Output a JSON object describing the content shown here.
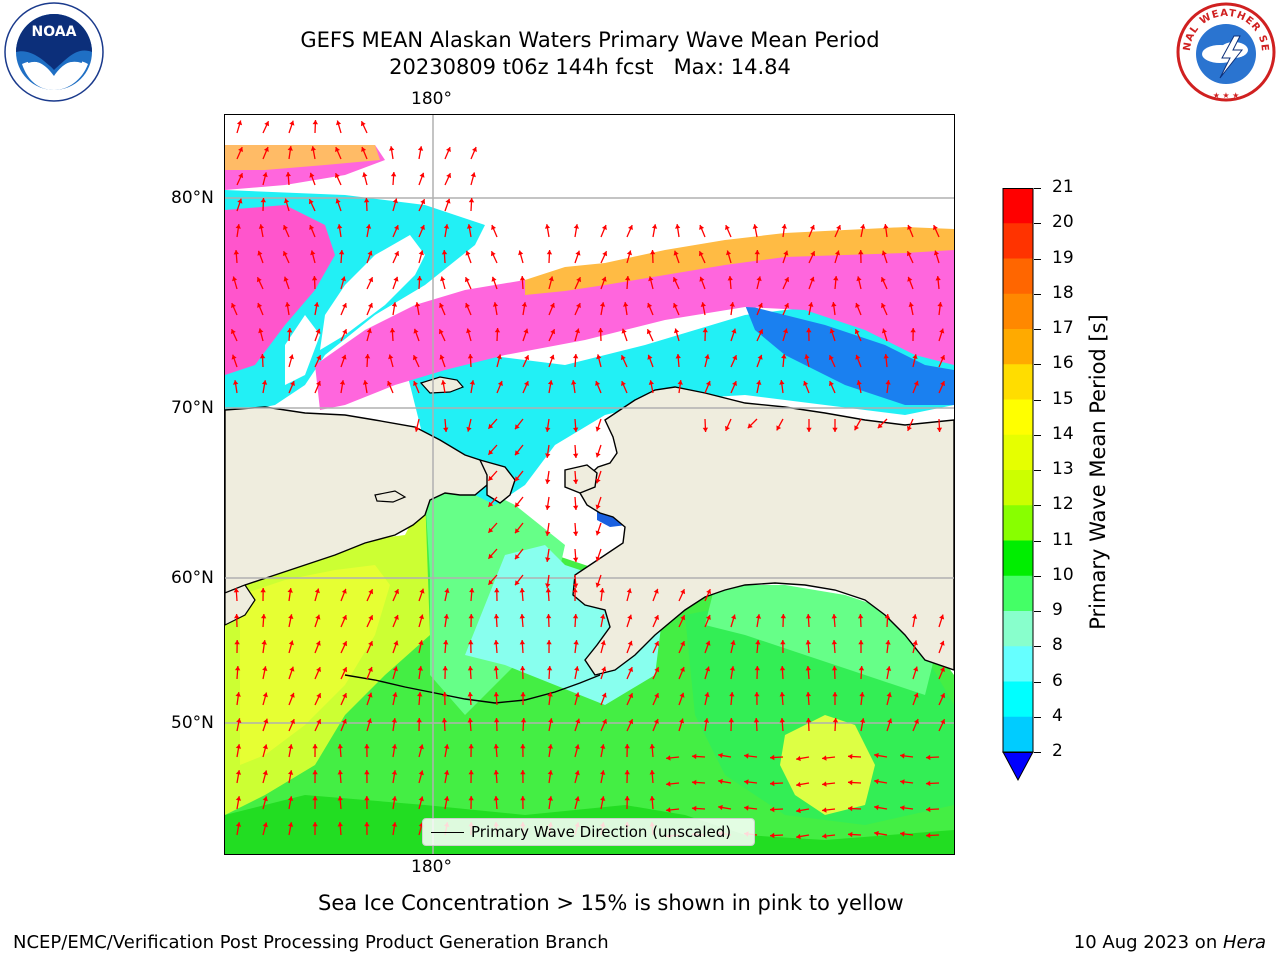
{
  "title": {
    "line1": "GEFS MEAN Alaskan Waters Primary Wave Mean Period",
    "line2": "20230809 t06z 144h fcst   Max: 14.84"
  },
  "logos": {
    "left": {
      "text": "NOAA",
      "ring_text": "NATIONAL OCEANIC AND ATMOSPHERIC ADMINISTRATION · U.S. DEPARTMENT OF COMMERCE",
      "icon": "noaa-logo"
    },
    "right": {
      "ring_text": "NATIONAL WEATHER SERVICE",
      "icon": "nws-logo"
    }
  },
  "map": {
    "top_longitude_label": "180°",
    "bottom_longitude_label": "180°",
    "latitude_labels": [
      "80°N",
      "70°N",
      "60°N",
      "50°N"
    ],
    "legend_entry": "Primary Wave Direction (unscaled)",
    "vector_color": "#ff0000",
    "land_color": "#efedde",
    "gridline_color": "#b0b0b0"
  },
  "colorbar": {
    "label": "Primary Wave Mean Period [s]",
    "ticks": [
      "21",
      "20",
      "19",
      "18",
      "17",
      "16",
      "15",
      "14",
      "13",
      "12",
      "11",
      "10",
      "9",
      "8",
      "6",
      "4",
      "2"
    ],
    "colors": [
      "#ff0000",
      "#ff3300",
      "#ff6600",
      "#ff8800",
      "#ffaa00",
      "#ffdd00",
      "#ffff00",
      "#e6ff00",
      "#ccff00",
      "#88ff00",
      "#00ee00",
      "#44ff66",
      "#88ffcc",
      "#66ffff",
      "#00ffff",
      "#00ccff",
      "#0077ff"
    ],
    "extend_color": "#0000ff"
  },
  "annotation": "Sea Ice Concentration > 15% is shown in pink to yellow",
  "footer": {
    "left": "NCEP/EMC/Verification Post Processing Product Generation Branch",
    "right_prefix": "10 Aug 2023 on ",
    "right_machine": "Hera"
  }
}
